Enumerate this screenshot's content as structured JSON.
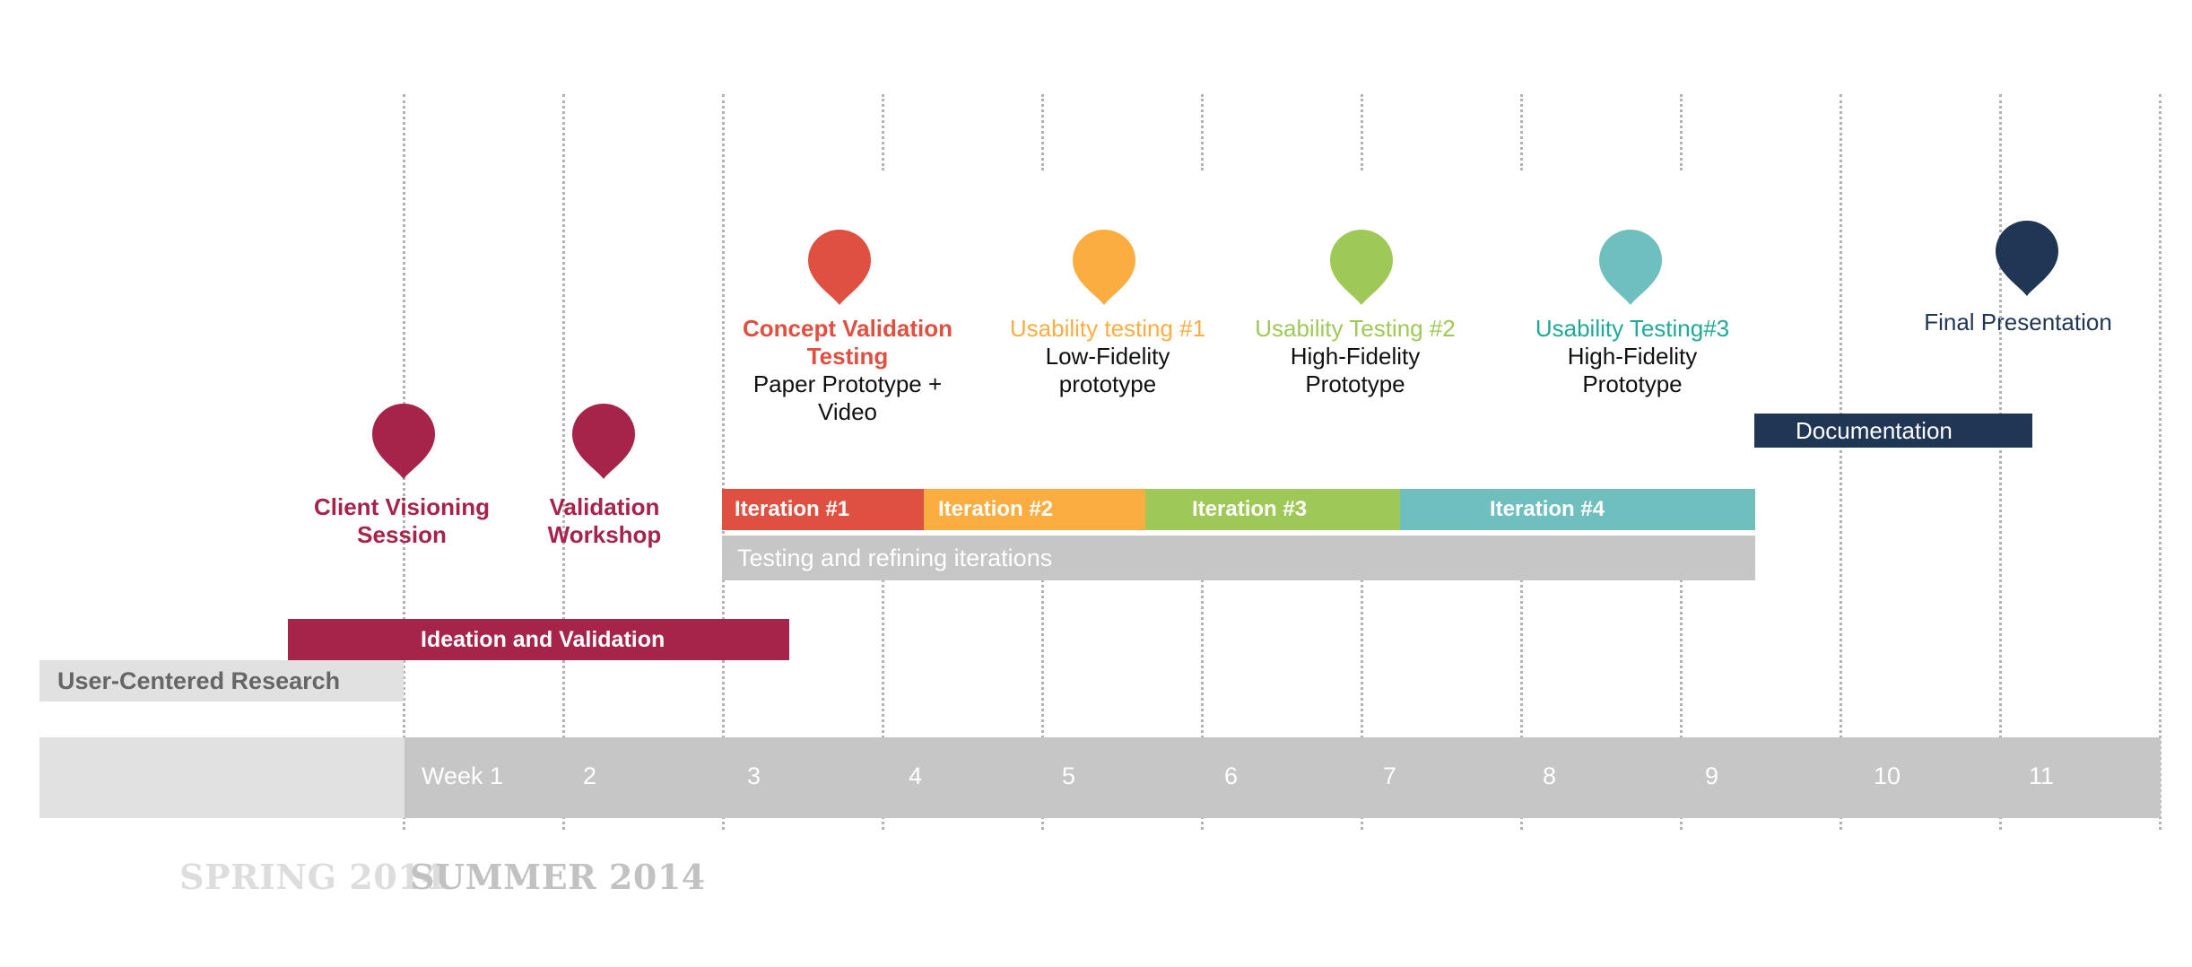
{
  "colors": {
    "crimson": "#a6234a",
    "red": "#e05040",
    "orange": "#fbad40",
    "green": "#9fc957",
    "teal": "#6fbfbf",
    "teal_text": "#20a899",
    "navy": "#1f3655",
    "gray_light": "#e1e1e1",
    "gray_mid": "#c6c6c6"
  },
  "phases": {
    "research": "User-Centered Research",
    "ideation": "Ideation and Validation",
    "testing": "Testing and refining iterations",
    "documentation": "Documentation"
  },
  "iterations": [
    "Iteration #1",
    "Iteration #2",
    "Iteration #3",
    "Iteration #4"
  ],
  "milestones": [
    {
      "title": "Client Visioning Session",
      "subtitle": "",
      "color": "crimson"
    },
    {
      "title": "Validation Workshop",
      "subtitle": "",
      "color": "crimson"
    },
    {
      "title": "Concept Validation Testing",
      "subtitle": "Paper Prototype + Video",
      "color": "red"
    },
    {
      "title": "Usability testing #1",
      "subtitle": "Low-Fidelity prototype",
      "color": "orange"
    },
    {
      "title": "Usability Testing #2",
      "subtitle": "High-Fidelity Prototype",
      "color": "green"
    },
    {
      "title": "Usability Testing#3",
      "subtitle": "High-Fidelity Prototype",
      "color": "teal_text"
    },
    {
      "title": "Final Presentation",
      "subtitle": "",
      "color": "navy"
    }
  ],
  "weeks": [
    "Week 1",
    "2",
    "3",
    "4",
    "5",
    "6",
    "7",
    "8",
    "9",
    "10",
    "11"
  ],
  "seasons": {
    "spring": "SPRING 2014",
    "summer": "SUMMER 2014"
  }
}
